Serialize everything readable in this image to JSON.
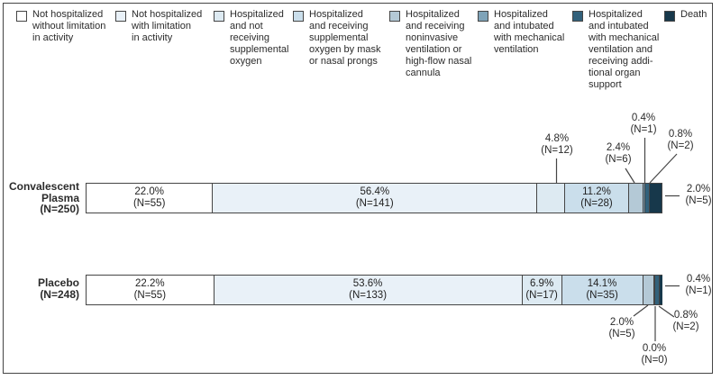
{
  "figure": {
    "legend": [
      {
        "label": "Not hospitalized\nwithout limitation\nin activity",
        "color": "#ffffff"
      },
      {
        "label": "Not hospitalized\nwith limitation\nin activity",
        "color": "#e9f1f8"
      },
      {
        "label": "Hospitalized\nand not\nreceiving\nsupplemental\noxygen",
        "color": "#ddeaf2"
      },
      {
        "label": "Hospitalized\nand receiving\nsupplemental\noxygen by mask\nor nasal prongs",
        "color": "#cadeeb"
      },
      {
        "label": "Hospitalized\nand receiving\nnoninvasive\nventilation or\nhigh-flow nasal\ncannula",
        "color": "#b4c9d6"
      },
      {
        "label": "Hospitalized\nand intubated\nwith mechanical\nventilation",
        "color": "#7fa3b8"
      },
      {
        "label": "Hospitalized\nand intubated\nwith mechanical\nventilation and\nreceiving addi-\ntional organ\nsupport",
        "color": "#32617b"
      },
      {
        "label": "Death",
        "color": "#17384b"
      }
    ],
    "rows": [
      {
        "label": "Convalescent\nPlasma\n(N=250)"
      },
      {
        "label": "Placebo\n(N=248)"
      }
    ]
  },
  "chart_data": {
    "type": "bar",
    "subtype": "horizontal-stacked-100pct",
    "title": "",
    "xlabel": "",
    "ylabel": "",
    "legend_position": "top",
    "grid": false,
    "value_label_format": "{pct}%\n(N={n})",
    "categories": [
      "Not hospitalized without limitation in activity",
      "Not hospitalized with limitation in activity",
      "Hospitalized and not receiving supplemental oxygen",
      "Hospitalized and receiving supplemental oxygen by mask or nasal prongs",
      "Hospitalized and receiving noninvasive ventilation or high-flow nasal cannula",
      "Hospitalized and intubated with mechanical ventilation",
      "Hospitalized and intubated with mechanical ventilation and receiving additional organ support",
      "Death"
    ],
    "colors": [
      "#ffffff",
      "#e9f1f8",
      "#ddeaf2",
      "#cadeeb",
      "#b4c9d6",
      "#7fa3b8",
      "#32617b",
      "#17384b"
    ],
    "bars": [
      {
        "name": "Convalescent Plasma",
        "n": 250,
        "pct": [
          22.0,
          56.4,
          4.8,
          11.2,
          2.4,
          0.4,
          0.8,
          2.0
        ],
        "counts": [
          55,
          141,
          12,
          28,
          6,
          1,
          2,
          5
        ]
      },
      {
        "name": "Placebo",
        "n": 248,
        "pct": [
          22.2,
          53.6,
          6.9,
          14.1,
          2.0,
          0.0,
          0.8,
          0.4
        ],
        "counts": [
          55,
          133,
          17,
          35,
          5,
          0,
          2,
          1
        ]
      }
    ]
  }
}
